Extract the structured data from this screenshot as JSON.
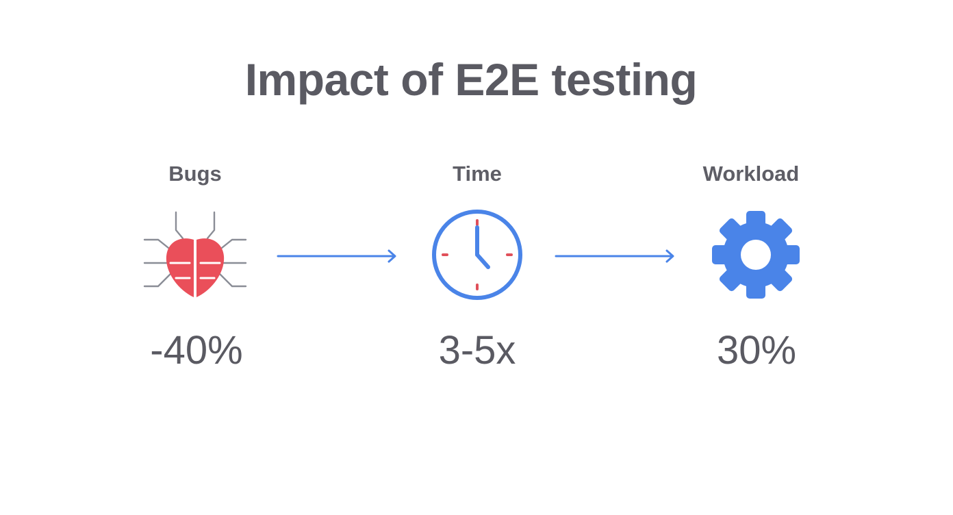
{
  "title": "Impact of E2E testing",
  "metrics": [
    {
      "label": "Bugs",
      "value": "-40%",
      "icon": "bug-icon"
    },
    {
      "label": "Time",
      "value": "3-5x",
      "icon": "clock-icon"
    },
    {
      "label": "Workload",
      "value": "30%",
      "icon": "gear-icon"
    }
  ],
  "colors": {
    "text": "#5a5a62",
    "bug_red": "#ea4f5a",
    "bug_legs": "#8a8d96",
    "accent_blue": "#4a84e8",
    "clock_marks": "#e0505a"
  }
}
